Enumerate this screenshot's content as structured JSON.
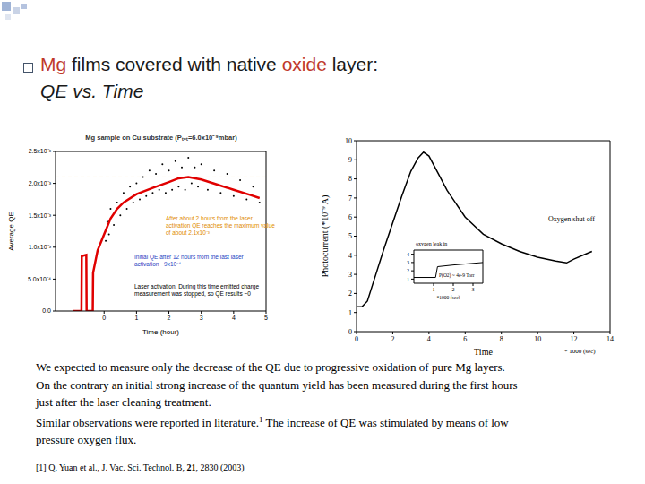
{
  "slide": {
    "title_parts": [
      {
        "text": "Mg",
        "color": "#c0392b"
      },
      {
        "text": " films covered with native ",
        "color": "#1a1a1a"
      },
      {
        "text": "oxide",
        "color": "#c0392b"
      },
      {
        "text": " layer:",
        "color": "#1a1a1a"
      }
    ],
    "subtitle": "QE vs. Time",
    "paragraph": "We expected to measure only the decrease of the QE due to progressive oxidation of pure Mg  layers. On the contrary an initial strong increase of the quantum yield has been measured during the first hours just after the laser cleaning treatment.",
    "paragraph2": {
      "text": "Similar observations were reported in literature.",
      "sup": "1",
      "after": " The increase of QE was stimulated by means of low pressure oxygen flux."
    },
    "reference": {
      "text": "[1] Q. Yuan et al., J. Vac. Sci. Technol. B, ",
      "bold": "21",
      "after": ", 2830 (2003)"
    }
  },
  "chart_data": [
    {
      "type": "scatter",
      "title": "Mg sample on Cu substrate (Pₜₒₜ=6.0x10⁻⁹mbar)",
      "xlabel": "Time (hour)",
      "ylabel": "Average QE",
      "xlim": [
        -1.5,
        5
      ],
      "xticks": [
        0,
        1,
        2,
        3,
        4,
        5
      ],
      "ylim": [
        0,
        0.0025
      ],
      "yticks": [
        {
          "value": 0,
          "label": "0.0"
        },
        {
          "value": 0.0005,
          "label": "5.0x10⁻⁴"
        },
        {
          "value": 0.001,
          "label": "1.0x10⁻³"
        },
        {
          "value": 0.0015,
          "label": "1.5x10⁻³"
        },
        {
          "value": 0.002,
          "label": "2.0x10⁻³"
        },
        {
          "value": 0.0025,
          "label": "2.5x10⁻³"
        }
      ],
      "grid": false,
      "series": [
        {
          "type": "scatter",
          "marker": "dot",
          "color": "#000000",
          "x": [
            0.05,
            0.1,
            0.15,
            0.2,
            0.3,
            0.4,
            0.5,
            0.6,
            0.7,
            0.8,
            0.9,
            1.0,
            1.1,
            1.2,
            1.3,
            1.4,
            1.5,
            1.6,
            1.7,
            1.8,
            1.9,
            2.0,
            2.1,
            2.2,
            2.3,
            2.4,
            2.5,
            2.6,
            2.7,
            2.8,
            2.9,
            3.0,
            3.2,
            3.4,
            3.6,
            3.8,
            4.0,
            4.2,
            4.4,
            4.6,
            4.8
          ],
          "values": [
            0.0011,
            0.0014,
            0.0012,
            0.0016,
            0.00135,
            0.0017,
            0.0015,
            0.00185,
            0.0016,
            0.00195,
            0.0017,
            0.002,
            0.00175,
            0.0021,
            0.0018,
            0.0022,
            0.00185,
            0.00215,
            0.0019,
            0.0023,
            0.00185,
            0.0022,
            0.0019,
            0.00235,
            0.00195,
            0.00225,
            0.0019,
            0.0024,
            0.002,
            0.00225,
            0.00195,
            0.0023,
            0.0019,
            0.0022,
            0.00185,
            0.00215,
            0.0018,
            0.00205,
            0.00175,
            0.00195,
            0.0017
          ]
        },
        {
          "type": "line",
          "color": "#e00000",
          "line_style": "solid",
          "x": [
            -0.95,
            -0.7,
            -0.69,
            -0.55,
            -0.54,
            -0.35,
            -0.34,
            -0.2,
            0,
            0.2,
            0.4,
            0.6,
            1.0,
            1.5,
            2.0,
            2.3,
            2.6,
            3.0,
            3.5,
            4.0,
            4.5,
            4.8
          ],
          "values": [
            0,
            0,
            0.00086,
            0.00088,
            0,
            0,
            0.0006,
            0.00095,
            0.0012,
            0.00145,
            0.0016,
            0.0017,
            0.00183,
            0.00193,
            0.00202,
            0.00208,
            0.0021,
            0.00206,
            0.00198,
            0.0019,
            0.00182,
            0.00177
          ]
        }
      ],
      "reference_lines": [
        {
          "y": 0.0021,
          "color": "#f0a020",
          "line_style": "dashed"
        }
      ],
      "annotations": [
        {
          "text": "After about 2 hours from the laser activation QE reaches the maximum value of about 2.1x10⁻³",
          "color": "#e08a00"
        },
        {
          "text": "Initial QE after 12 hours from the last laser activation ~9x10⁻⁴",
          "color": "#1f3fbf"
        },
        {
          "text": "Laser activation. During this time emitted charge measurement was stopped, so QE results ~0",
          "color": "#000000"
        }
      ]
    },
    {
      "type": "line",
      "xlabel": "Time",
      "x_unit_label": "* 1000 (sec)",
      "ylabel": "Photocurrent (*10⁻⁹ A)",
      "xlim": [
        0,
        14
      ],
      "xticks": [
        0,
        2,
        4,
        6,
        8,
        10,
        12,
        14
      ],
      "ylim": [
        0,
        10
      ],
      "yticks": [
        0,
        1,
        2,
        3,
        4,
        5,
        6,
        7,
        8,
        9,
        10
      ],
      "grid": false,
      "series": [
        {
          "type": "line",
          "color": "#000000",
          "line_style": "solid",
          "x": [
            0,
            0.3,
            0.6,
            1,
            1.5,
            2,
            2.5,
            3,
            3.4,
            3.7,
            4,
            4.5,
            5,
            6,
            7,
            8,
            9,
            10,
            11,
            11.6,
            12,
            12.5,
            13
          ],
          "values": [
            1.3,
            1.3,
            1.6,
            2.8,
            4.3,
            5.7,
            7.1,
            8.4,
            9.1,
            9.4,
            9.2,
            8.3,
            7.4,
            6.0,
            5.1,
            4.6,
            4.2,
            3.9,
            3.7,
            3.6,
            3.8,
            4.0,
            4.2
          ]
        }
      ],
      "annotations": [
        {
          "text": "Oxygen shut off",
          "color": "#000000"
        }
      ]
    },
    {
      "type": "line",
      "xlabel": "*1000 (sec)",
      "xlim": [
        0,
        3.5
      ],
      "xticks": [
        1,
        2,
        3
      ],
      "ylim": [
        0.5,
        4.5
      ],
      "yticks": [
        1,
        2,
        3,
        4
      ],
      "grid": false,
      "series": [
        {
          "type": "line",
          "color": "#000000",
          "line_style": "solid",
          "x": [
            0,
            1.1,
            1.2,
            2,
            3,
            3.5
          ],
          "values": [
            1.2,
            1.2,
            2.5,
            2.7,
            2.9,
            3.0
          ]
        }
      ],
      "annotations": [
        {
          "text": "oxygen leak in",
          "color": "#000000"
        },
        {
          "text": "P(O2) ~ 4e-9 Torr",
          "color": "#000000"
        }
      ]
    }
  ]
}
